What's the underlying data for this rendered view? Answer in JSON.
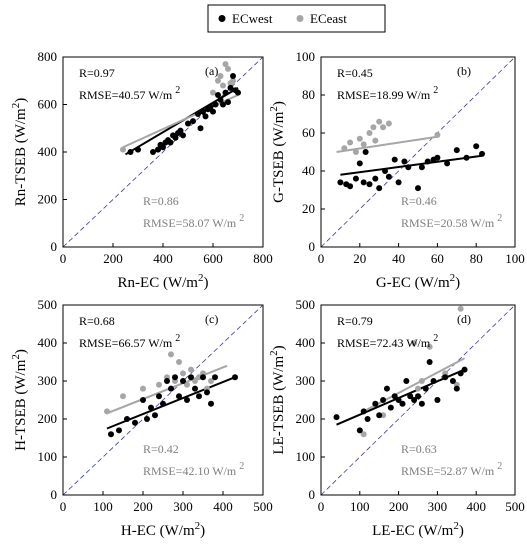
{
  "legend": [
    {
      "label": "ECwest",
      "color": "#000000"
    },
    {
      "label": "ECeast",
      "color": "#a6a6a6"
    }
  ],
  "colors": {
    "west": "#000000",
    "east": "#a6a6a6",
    "one_to_one": "#3a3aa8"
  },
  "chart_data": [
    {
      "type": "scatter",
      "panel_label": "(a)",
      "xlabel": "Rn-EC (W/m²)",
      "ylabel": "Rn-TSEB (W/m²)",
      "xlim": [
        0,
        800
      ],
      "ylim": [
        0,
        800
      ],
      "xticks": [
        0,
        200,
        400,
        600,
        800
      ],
      "yticks": [
        0,
        200,
        400,
        600,
        800
      ],
      "one_to_one_line": true,
      "annotations": [
        {
          "series": "ECwest",
          "lines": [
            "R=0.97",
            "RMSE=40.57 W/m²"
          ]
        },
        {
          "series": "ECeast",
          "lines": [
            "R=0.86",
            "RMSE=58.07 W/m²"
          ]
        }
      ],
      "series": [
        {
          "name": "ECwest",
          "x": [
            270,
            300,
            360,
            380,
            390,
            400,
            410,
            420,
            430,
            440,
            450,
            460,
            470,
            480,
            500,
            520,
            540,
            550,
            560,
            570,
            580,
            590,
            600,
            610,
            620,
            630,
            640,
            650,
            660,
            670,
            680,
            690,
            700
          ],
          "y": [
            400,
            410,
            400,
            410,
            430,
            420,
            440,
            450,
            440,
            470,
            460,
            480,
            490,
            470,
            520,
            530,
            560,
            500,
            570,
            550,
            580,
            590,
            570,
            600,
            640,
            620,
            600,
            650,
            610,
            670,
            720,
            660,
            650
          ],
          "fit": [
            [
              250,
              390
            ],
            [
              700,
              670
            ]
          ]
        },
        {
          "name": "ECeast",
          "x": [
            240,
            600,
            620,
            630,
            640,
            650,
            660,
            670,
            680
          ],
          "y": [
            410,
            650,
            700,
            720,
            680,
            770,
            750,
            690,
            700
          ],
          "fit": [
            [
              240,
              420
            ],
            [
              700,
              640
            ]
          ]
        }
      ]
    },
    {
      "type": "scatter",
      "panel_label": "(b)",
      "xlabel": "G-EC (W/m²)",
      "ylabel": "G-TSEB (W/m²)",
      "xlim": [
        0,
        100
      ],
      "ylim": [
        0,
        100
      ],
      "xticks": [
        0,
        20,
        40,
        60,
        80,
        100
      ],
      "yticks": [
        0,
        20,
        40,
        60,
        80,
        100
      ],
      "one_to_one_line": true,
      "annotations": [
        {
          "series": "ECwest",
          "lines": [
            "R=0.45",
            "RMSE=18.99 W/m²"
          ]
        },
        {
          "series": "ECeast",
          "lines": [
            "R=0.46",
            "RMSE=20.58 W/m²"
          ]
        }
      ],
      "series": [
        {
          "name": "ECwest",
          "x": [
            10,
            13,
            15,
            18,
            20,
            22,
            23,
            25,
            28,
            30,
            33,
            35,
            38,
            40,
            43,
            45,
            50,
            52,
            55,
            58,
            60,
            65,
            70,
            75,
            80,
            83
          ],
          "y": [
            34,
            33,
            32,
            36,
            44,
            34,
            50,
            33,
            36,
            31,
            40,
            37,
            46,
            34,
            45,
            42,
            31,
            42,
            45,
            46,
            47,
            44,
            51,
            47,
            53,
            49
          ],
          "fit": [
            [
              10,
              38
            ],
            [
              83,
              48
            ]
          ]
        },
        {
          "name": "ECeast",
          "x": [
            12,
            15,
            18,
            20,
            22,
            25,
            27,
            28,
            30,
            32,
            35,
            60
          ],
          "y": [
            52,
            55,
            50,
            57,
            54,
            60,
            63,
            56,
            66,
            63,
            65,
            59
          ],
          "fit": [
            [
              8,
              50
            ],
            [
              60,
              58
            ]
          ]
        }
      ]
    },
    {
      "type": "scatter",
      "panel_label": "(c)",
      "xlabel": "H-EC (W/m²)",
      "ylabel": "H-TSEB (W/m²)",
      "xlim": [
        0,
        500
      ],
      "ylim": [
        0,
        500
      ],
      "xticks": [
        0,
        100,
        200,
        300,
        400,
        500
      ],
      "yticks": [
        0,
        100,
        200,
        300,
        400,
        500
      ],
      "one_to_one_line": true,
      "annotations": [
        {
          "series": "ECwest",
          "lines": [
            "R=0.68",
            "RMSE=66.57 W/m²"
          ]
        },
        {
          "series": "ECeast",
          "lines": [
            "R=0.42",
            "RMSE=42.10 W/m²"
          ]
        }
      ],
      "series": [
        {
          "name": "ECwest",
          "x": [
            120,
            140,
            160,
            180,
            200,
            210,
            220,
            230,
            240,
            250,
            260,
            270,
            280,
            290,
            300,
            310,
            320,
            330,
            340,
            350,
            360,
            370,
            380,
            430
          ],
          "y": [
            160,
            170,
            200,
            190,
            250,
            200,
            230,
            210,
            260,
            240,
            300,
            280,
            310,
            260,
            300,
            250,
            310,
            280,
            260,
            310,
            270,
            240,
            310,
            310
          ],
          "fit": [
            [
              110,
              175
            ],
            [
              430,
              310
            ]
          ]
        },
        {
          "name": "ECeast",
          "x": [
            110,
            150,
            200,
            240,
            260,
            270,
            280,
            290,
            300,
            310,
            320,
            330,
            340,
            350,
            360,
            370
          ],
          "y": [
            220,
            260,
            280,
            290,
            310,
            370,
            300,
            350,
            320,
            290,
            330,
            300,
            310,
            320,
            280,
            300
          ],
          "fit": [
            [
              110,
              215
            ],
            [
              410,
              340
            ]
          ]
        }
      ]
    },
    {
      "type": "scatter",
      "panel_label": "(d)",
      "xlabel": "LE-EC (W/m²)",
      "ylabel": "LE-TSEB (W/m²)",
      "xlim": [
        0,
        500
      ],
      "ylim": [
        0,
        500
      ],
      "xticks": [
        0,
        100,
        200,
        300,
        400,
        500
      ],
      "yticks": [
        0,
        100,
        200,
        300,
        400,
        500
      ],
      "one_to_one_line": true,
      "annotations": [
        {
          "series": "ECwest",
          "lines": [
            "R=0.79",
            "RMSE=72.43 W/m²"
          ]
        },
        {
          "series": "ECeast",
          "lines": [
            "R=0.63",
            "RMSE=52.87 W/m²"
          ]
        }
      ],
      "series": [
        {
          "name": "ECwest",
          "x": [
            40,
            100,
            110,
            120,
            140,
            150,
            160,
            170,
            180,
            190,
            200,
            210,
            220,
            230,
            240,
            250,
            260,
            270,
            280,
            290,
            300,
            320,
            340,
            350,
            360,
            370
          ],
          "y": [
            205,
            170,
            220,
            200,
            240,
            210,
            250,
            280,
            230,
            260,
            250,
            240,
            300,
            260,
            250,
            260,
            240,
            280,
            350,
            300,
            250,
            310,
            300,
            280,
            320,
            330
          ],
          "fit": [
            [
              40,
              185
            ],
            [
              370,
              330
            ]
          ]
        },
        {
          "name": "ECeast",
          "x": [
            110,
            160,
            210,
            240,
            250,
            260,
            280,
            300,
            320,
            340,
            350,
            360
          ],
          "y": [
            160,
            210,
            240,
            400,
            280,
            300,
            390,
            250,
            320,
            300,
            290,
            490
          ],
          "fit": [
            [
              110,
              220
            ],
            [
              370,
              360
            ]
          ]
        }
      ]
    }
  ]
}
